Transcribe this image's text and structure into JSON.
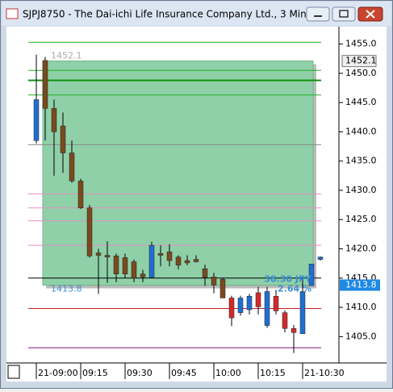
{
  "window_title": "SJPJ8750 - The Dai-ichi Life Insurance Company Ltd., 3 Min",
  "chart_data": {
    "type": "candlestick",
    "categories": [
      "21-09:00",
      null,
      null,
      null,
      null,
      "09:15",
      null,
      null,
      null,
      null,
      "09:30",
      null,
      null,
      null,
      null,
      "09:45",
      null,
      null,
      null,
      null,
      "10:00",
      null,
      null,
      null,
      null,
      "10:15",
      null,
      null,
      null,
      null,
      "21-10:30",
      null,
      null
    ],
    "open": [
      1438.5,
      1452.2,
      1444,
      1441,
      1436.4,
      1431.6,
      1427,
      1419.3,
      1418.9,
      1418.8,
      1418.5,
      1417.8,
      1415.7,
      1415.1,
      1419.2,
      1419.5,
      1418.6,
      1418,
      1418.2,
      1416.6,
      1415.2,
      1414.8,
      1411.6,
      1409.1,
      1409.6,
      1412.5,
      1406.9,
      1411.9,
      1409.1,
      1406.4,
      1405.5,
      1413.7,
      1418.2
    ],
    "high": [
      1453.2,
      1452.8,
      1445.5,
      1443.3,
      1438.5,
      1432,
      1427.5,
      1420,
      1421.3,
      1419.2,
      1419.2,
      1418.2,
      1416.4,
      1421.2,
      1420.6,
      1420.8,
      1418.9,
      1418.9,
      1418.9,
      1417.3,
      1415.9,
      1415.1,
      1412,
      1412,
      1412.3,
      1413.5,
      1413.5,
      1413,
      1409.5,
      1407,
      1415,
      1417.4,
      1418.7
    ],
    "low": [
      1438,
      1438.5,
      1432.5,
      1433,
      1431.3,
      1426.8,
      1418.5,
      1412.3,
      1414.2,
      1414.3,
      1415,
      1414.3,
      1414.3,
      1415,
      1417,
      1417,
      1416.5,
      1417.2,
      1417.7,
      1413.7,
      1412.4,
      1411.6,
      1406.8,
      1408.6,
      1408.8,
      1408.8,
      1406.5,
      1408.8,
      1405.7,
      1402.2,
      1405.5,
      1413.7,
      1418
    ],
    "close": [
      1445.5,
      1444,
      1440,
      1436.4,
      1431.6,
      1427,
      1418.8,
      1418.9,
      1418.6,
      1415.7,
      1415.7,
      1415,
      1415.2,
      1420.6,
      1418.9,
      1418,
      1417.2,
      1417.6,
      1417.8,
      1415.1,
      1413.8,
      1411.6,
      1408.2,
      1411.6,
      1411.9,
      1410.1,
      1412.7,
      1409.4,
      1406.4,
      1405.7,
      1412.7,
      1417.4,
      1418.6
    ],
    "colors": [
      "#1f6fd0",
      "#7a4a1e",
      "#7a4a1e",
      "#7a4a1e",
      "#7a4a1e",
      "#7a4a1e",
      "#7a4a1e",
      "#7a4a1e",
      "#7a4a1e",
      "#7a4a1e",
      "#7a4a1e",
      "#7a4a1e",
      "#7a4a1e",
      "#1f6fd0",
      "#7a4a1e",
      "#7a4a1e",
      "#7a4a1e",
      "#7a4a1e",
      "#7a4a1e",
      "#7a4a1e",
      "#7a4a1e",
      "#7a4a1e",
      "#d42a2a",
      "#1f6fd0",
      "#1f6fd0",
      "#d42a2a",
      "#1f6fd0",
      "#d42a2a",
      "#d42a2a",
      "#d42a2a",
      "#1f6fd0",
      "#1f6fd0",
      "#1f6fd0"
    ],
    "ylim": [
      1400.5,
      1457.7
    ],
    "yticks": [
      {
        "value": 1405,
        "label": "1405.0"
      },
      {
        "value": 1410,
        "label": "1410.0"
      },
      {
        "value": 1415,
        "label": "1415.0"
      },
      {
        "value": 1420,
        "label": "1420.0"
      },
      {
        "value": 1425,
        "label": "1425.0"
      },
      {
        "value": 1430,
        "label": "1430.0"
      },
      {
        "value": 1435,
        "label": "1435.0"
      },
      {
        "value": 1440,
        "label": "1440.0"
      },
      {
        "value": 1445,
        "label": "1445.0"
      },
      {
        "value": 1450,
        "label": "1450.0"
      },
      {
        "value": 1455,
        "label": "1455.0"
      }
    ],
    "levels": [
      {
        "value": 1455.3,
        "color": "#22b022"
      },
      {
        "value": 1450.5,
        "color": "#22b022"
      },
      {
        "value": 1448.8,
        "color": "#109010"
      },
      {
        "value": 1446.3,
        "color": "#22b022"
      },
      {
        "value": 1437.8,
        "color": "#8a8a8a"
      },
      {
        "value": 1429.4,
        "color": "#e090c0"
      },
      {
        "value": 1427,
        "color": "#e090c0"
      },
      {
        "value": 1424.8,
        "color": "#e090c0"
      },
      {
        "value": 1420.6,
        "color": "#e090c0"
      },
      {
        "value": 1415,
        "color": "#000000"
      },
      {
        "value": 1409.8,
        "color": "#d02020"
      },
      {
        "value": 1403.1,
        "color": "#801080"
      }
    ],
    "range_high": 1452.1,
    "range_low": 1413.8,
    "range_change": "38.30 JPY",
    "range_percent": "2.64 %"
  }
}
